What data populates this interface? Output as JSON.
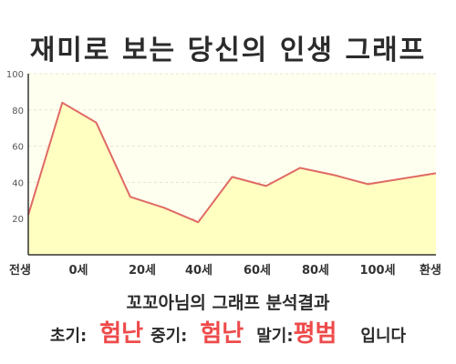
{
  "title": "재미로 보는 당신의 인생 그래프",
  "analysis_title": "꼬꼬아님의 그래프 분석결과",
  "result": {
    "early_label": "초기:",
    "early_value": "험난",
    "middle_label": "중기:",
    "middle_value": "험난",
    "late_label": "말기:",
    "late_value": "평범",
    "suffix": "입니다"
  },
  "colors": {
    "line": "#e06a64",
    "fill": "#ffffc2",
    "plot_bg": "#fffff0",
    "highlight": "#ee4a4a"
  },
  "chart_data": {
    "type": "area",
    "title": "재미로 보는 당신의 인생 그래프",
    "xlabel": "",
    "ylabel": "",
    "x_tick_labels": [
      "전생",
      "0세",
      "20세",
      "40세",
      "60세",
      "80세",
      "100세",
      "환생"
    ],
    "ylim": [
      0,
      100
    ],
    "y_ticks": [
      20,
      40,
      60,
      80,
      100
    ],
    "grid": true,
    "series": [
      {
        "values": [
          22,
          84,
          73,
          32,
          26,
          18,
          43,
          38,
          48,
          44,
          39,
          42,
          45
        ]
      }
    ]
  }
}
